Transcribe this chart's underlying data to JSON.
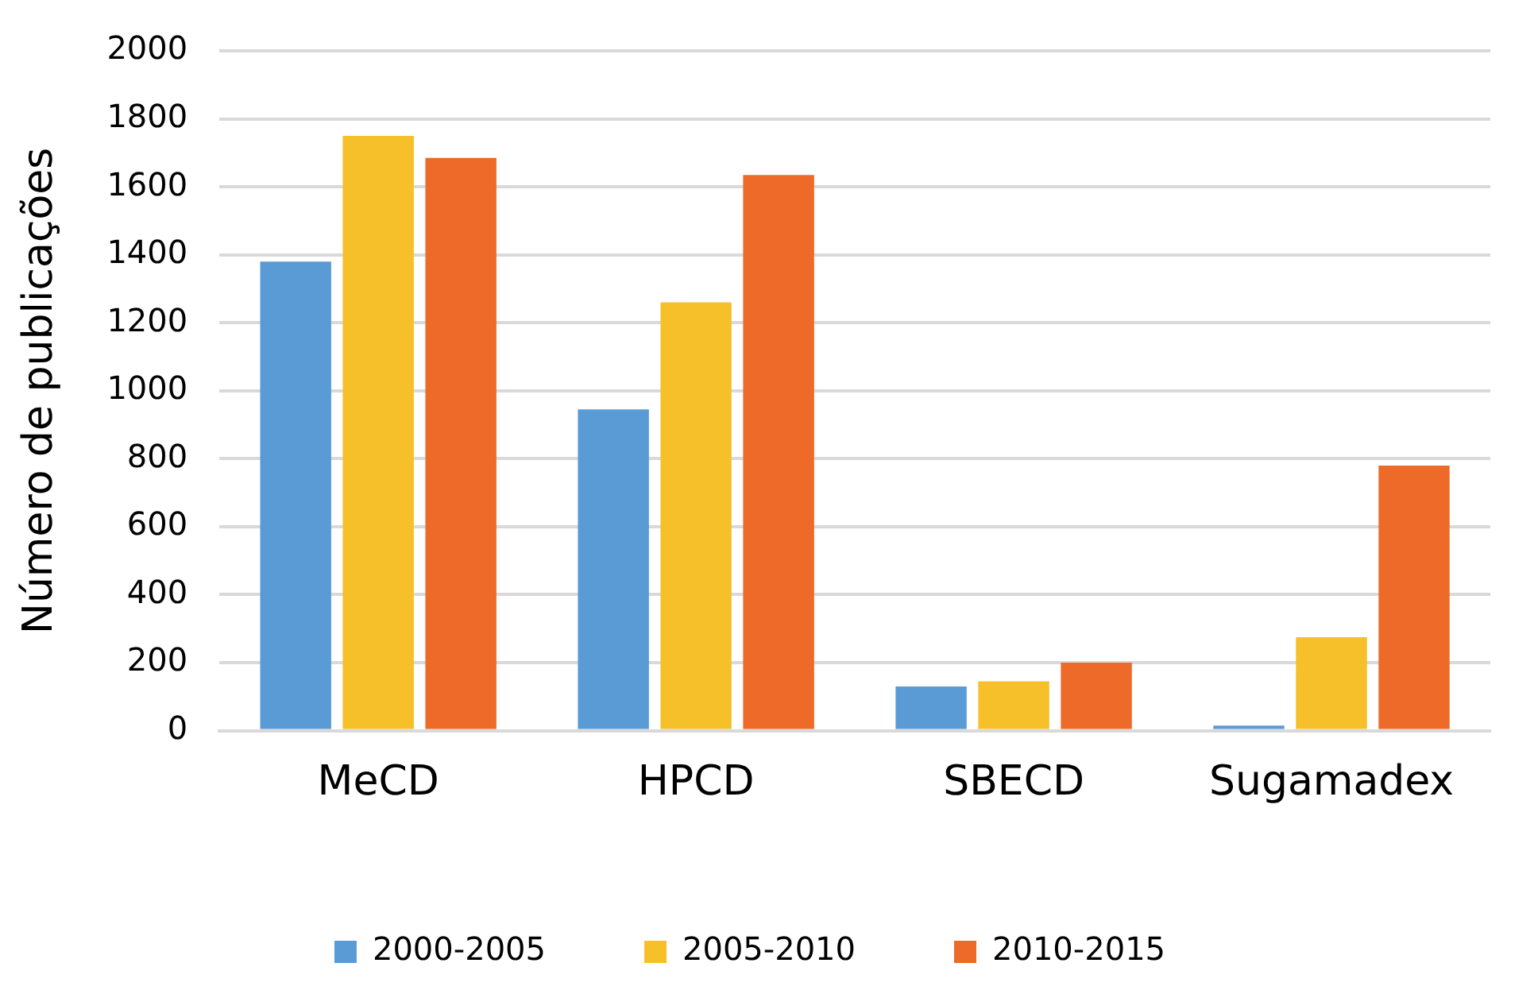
{
  "chart_data": {
    "type": "bar",
    "ylabel": "Número de publicações",
    "categories": [
      "MeCD",
      "HPCD",
      "SBECD",
      "Sugamadex"
    ],
    "series": [
      {
        "name": "2000-2005",
        "color": "#5b9bd5",
        "values": [
          1380,
          945,
          130,
          15
        ]
      },
      {
        "name": "2005-2010",
        "color": "#f6c02a",
        "values": [
          1750,
          1260,
          145,
          275
        ]
      },
      {
        "name": "2010-2015",
        "color": "#ee6a29",
        "values": [
          1685,
          1635,
          200,
          780
        ]
      }
    ],
    "ylim": [
      0,
      2000
    ],
    "yticks": [
      0,
      200,
      400,
      600,
      800,
      1000,
      1200,
      1400,
      1600,
      1800,
      2000
    ],
    "grid": "y",
    "legend": "bottom"
  }
}
